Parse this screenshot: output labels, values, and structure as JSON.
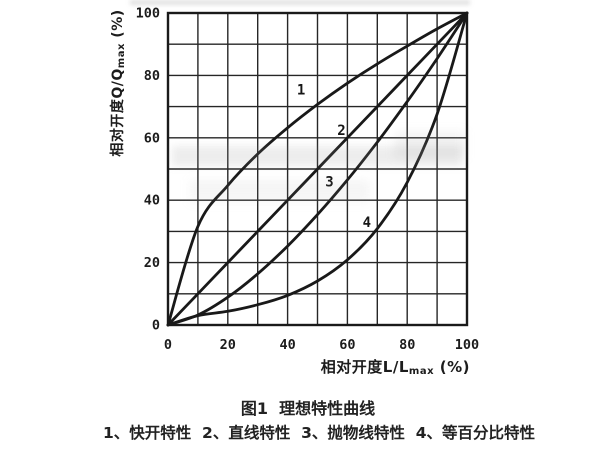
{
  "figure": {
    "caption_title": "图1  理想特性曲线",
    "caption_legend": "1、快开特性  2、直线特性  3、抛物线特性  4、等百分比特性"
  },
  "axes": {
    "y_title_prefix": "相对开度Q/Q",
    "y_title_sub": "max",
    "y_title_suffix": " (%)",
    "x_title_prefix": "相对开度L/L",
    "x_title_sub": "max",
    "x_title_suffix": " (%)",
    "x_ticks": [
      0,
      20,
      40,
      60,
      80,
      100
    ],
    "y_ticks": [
      0,
      20,
      40,
      60,
      80,
      100
    ]
  },
  "chart_data": {
    "type": "line",
    "title": "图1 理想特性曲线",
    "xlabel": "相对开度L/Lmax (%)",
    "ylabel": "相对开度Q/Qmax (%)",
    "xlim": [
      0,
      100
    ],
    "ylim": [
      0,
      100
    ],
    "grid": true,
    "grid_step": 10,
    "tick_step": 20,
    "legend_position": "caption-below-chart",
    "line_color": "#191919",
    "background": "#ffffff",
    "x": [
      0,
      10,
      20,
      30,
      40,
      50,
      60,
      70,
      80,
      90,
      100
    ],
    "series": [
      {
        "id": "1",
        "name": "快开特性",
        "values": [
          0,
          31.6,
          44.7,
          54.8,
          63.2,
          70.7,
          77.5,
          83.7,
          89.4,
          94.9,
          100
        ],
        "label_x": 44.5,
        "label_y": 75.5
      },
      {
        "id": "2",
        "name": "直线特性",
        "values": [
          0,
          10,
          20,
          30,
          40,
          50,
          60,
          70,
          80,
          90,
          100
        ],
        "label_x": 58,
        "label_y": 62.5
      },
      {
        "id": "3",
        "name": "抛物线特性",
        "values": [
          0,
          3.2,
          8.9,
          16.4,
          25.3,
          35.4,
          46.5,
          58.6,
          71.6,
          85.4,
          100
        ],
        "label_x": 54,
        "label_y": 46
      },
      {
        "id": "4",
        "name": "等百分比特性",
        "values": [
          0,
          3.0,
          4.4,
          6.5,
          9.5,
          14.1,
          20.9,
          30.9,
          45.7,
          67.6,
          100
        ],
        "label_x": 66.5,
        "label_y": 33
      }
    ]
  }
}
